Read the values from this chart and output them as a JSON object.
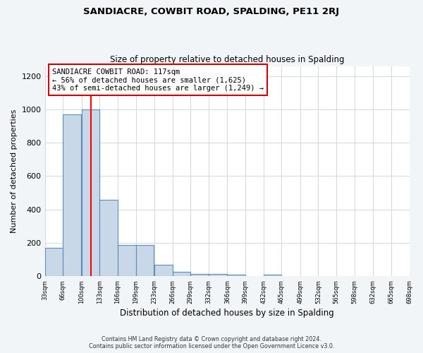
{
  "title": "SANDIACRE, COWBIT ROAD, SPALDING, PE11 2RJ",
  "subtitle": "Size of property relative to detached houses in Spalding",
  "xlabel": "Distribution of detached houses by size in Spalding",
  "ylabel": "Number of detached properties",
  "bin_edges": [
    33,
    66,
    100,
    133,
    166,
    199,
    233,
    266,
    299,
    332,
    366,
    399,
    432,
    465,
    499,
    532,
    565,
    598,
    632,
    665,
    698
  ],
  "bar_heights": [
    170,
    970,
    1000,
    460,
    185,
    185,
    70,
    25,
    15,
    15,
    10,
    0,
    10,
    0,
    0,
    0,
    0,
    0,
    0,
    0
  ],
  "bar_color": "#c8d8e8",
  "bar_edge_color": "#5b8db8",
  "red_line_x": 117,
  "ylim": [
    0,
    1260
  ],
  "yticks": [
    0,
    200,
    400,
    600,
    800,
    1000,
    1200
  ],
  "annotation_title": "SANDIACRE COWBIT ROAD: 117sqm",
  "annotation_line2": "← 56% of detached houses are smaller (1,625)",
  "annotation_line3": "43% of semi-detached houses are larger (1,249) →",
  "footer_line1": "Contains HM Land Registry data © Crown copyright and database right 2024.",
  "footer_line2": "Contains public sector information licensed under the Open Government Licence v3.0.",
  "background_color": "#f2f5f8",
  "plot_bg_color": "#ffffff",
  "grid_color": "#d0d8e0"
}
